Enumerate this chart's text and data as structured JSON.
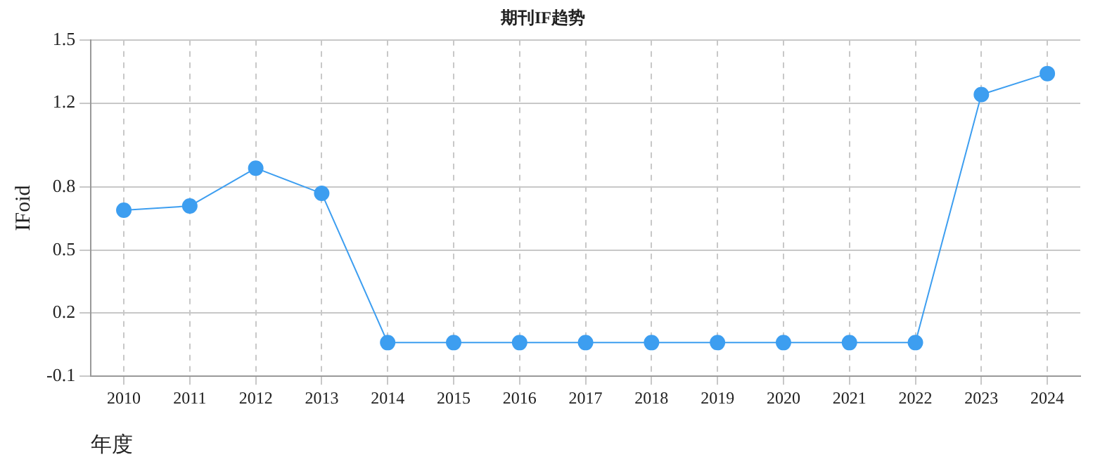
{
  "chart_data": {
    "type": "line",
    "title": "期刊IF趋势",
    "xlabel": "年度",
    "ylabel": "IFoid",
    "categories": [
      "2010",
      "2011",
      "2012",
      "2013",
      "2014",
      "2015",
      "2016",
      "2017",
      "2018",
      "2019",
      "2020",
      "2021",
      "2022",
      "2023",
      "2024"
    ],
    "series": [
      {
        "color": "#3d9ef0",
        "values": [
          0.69,
          0.71,
          0.89,
          0.77,
          0.06,
          0.06,
          0.06,
          0.06,
          0.06,
          0.06,
          0.06,
          0.06,
          0.06,
          1.24,
          1.34
        ]
      }
    ],
    "ylim": [
      -0.1,
      1.5
    ],
    "yticks": [
      -0.1,
      0.2,
      0.5,
      0.8,
      1.2,
      1.5
    ],
    "grid": true,
    "marker": "circle",
    "line_style": "solid",
    "legend": false
  }
}
